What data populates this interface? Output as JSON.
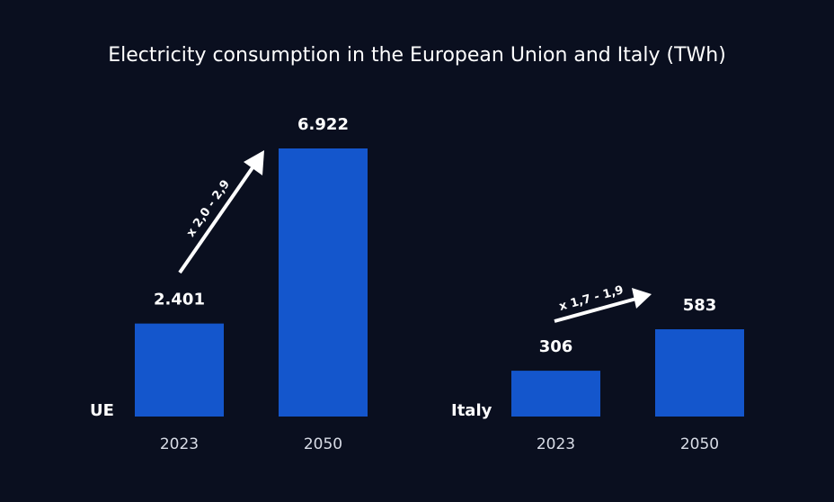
{
  "title": "Electricity consumption in the European Union and Italy (TWh)",
  "chart_data": [
    {
      "type": "bar",
      "label": "UE",
      "categories": [
        "2023",
        "2050"
      ],
      "values": [
        2401,
        6922
      ],
      "value_labels": [
        "2.401",
        "6.922"
      ],
      "color": "#1456cc",
      "annotation": "x 2,0 - 2,9"
    },
    {
      "type": "bar",
      "label": "Italy",
      "categories": [
        "2023",
        "2050"
      ],
      "values": [
        306,
        583
      ],
      "value_labels": [
        "306",
        "583"
      ],
      "color": "#1456cc",
      "annotation": "x 1,7 - 1,9"
    }
  ]
}
